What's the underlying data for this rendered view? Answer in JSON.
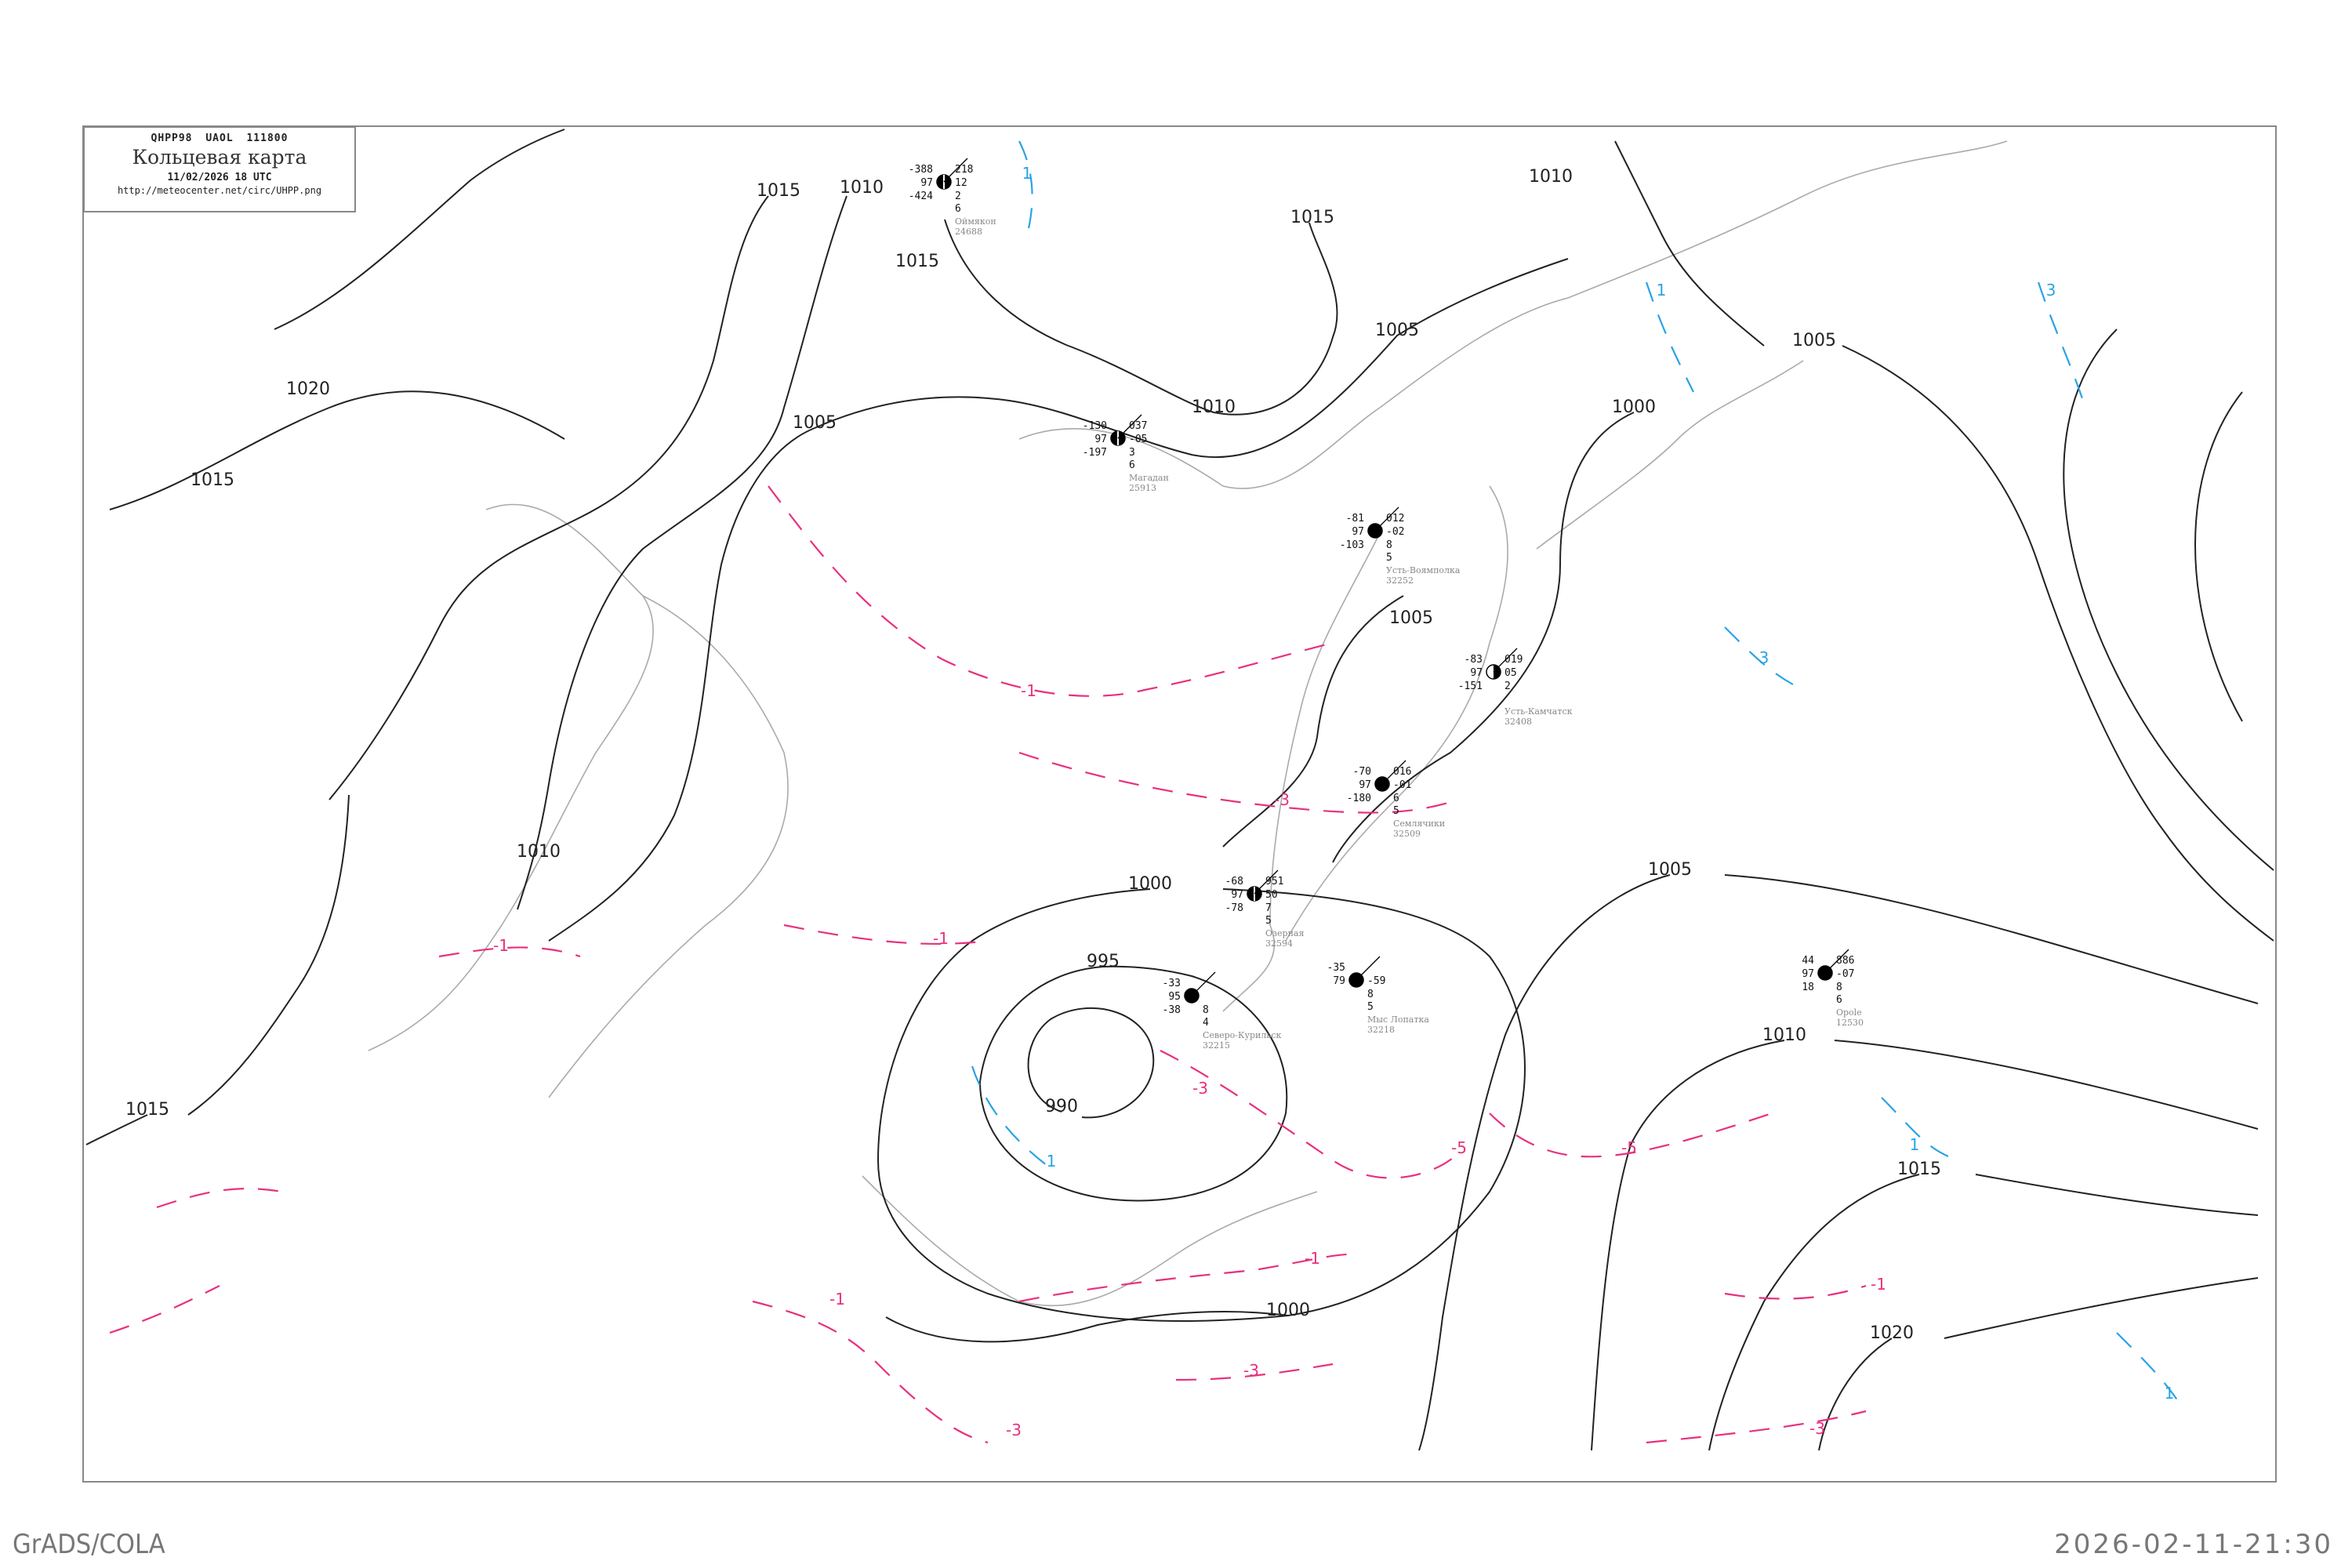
{
  "header": {
    "code_line": "QHPP98  UAOL  111800",
    "title": "Кольцевая карта",
    "datetime": "11/02/2026 18 UTC",
    "url": "http://meteocenter.net/circ/UHPP.png"
  },
  "footer": {
    "left": "GrADS/COLA",
    "right": "2026-02-11-21:30"
  },
  "colors": {
    "isobar": "#222222",
    "negative_isotherm": "#e8307f",
    "positive_isotherm": "#29a3e6",
    "coastline": "#aaaaaa",
    "frame": "#888888",
    "snow_marker": "#3a8ee6"
  },
  "isobar_labels": [
    "1015",
    "1010",
    "1015",
    "1015",
    "1010",
    "1005",
    "1005",
    "1010",
    "1005",
    "1000",
    "1020",
    "1015",
    "1005",
    "1010",
    "1000",
    "995",
    "990",
    "1005",
    "1010",
    "1015",
    "1020",
    "1000",
    "1015"
  ],
  "isotherm_labels": [
    {
      "text": "-1",
      "sign": "neg"
    },
    {
      "text": "-3",
      "sign": "neg"
    },
    {
      "text": "-1",
      "sign": "neg"
    },
    {
      "text": "-1",
      "sign": "neg"
    },
    {
      "text": "-3",
      "sign": "neg"
    },
    {
      "text": "-5",
      "sign": "neg"
    },
    {
      "text": "-5",
      "sign": "neg"
    },
    {
      "text": "-1",
      "sign": "neg"
    },
    {
      "text": "-1",
      "sign": "neg"
    },
    {
      "text": "-3",
      "sign": "neg"
    },
    {
      "text": "-3",
      "sign": "neg"
    },
    {
      "text": "-1",
      "sign": "neg"
    },
    {
      "text": "-3",
      "sign": "neg"
    },
    {
      "text": "1",
      "sign": "pos"
    },
    {
      "text": "1",
      "sign": "pos"
    },
    {
      "text": "3",
      "sign": "pos"
    },
    {
      "text": "1",
      "sign": "pos"
    },
    {
      "text": "1",
      "sign": "pos"
    },
    {
      "text": "3",
      "sign": "pos"
    },
    {
      "text": "1",
      "sign": "pos"
    }
  ],
  "stations": [
    {
      "name": "Оймякон",
      "index": "24688",
      "temp": "-388",
      "vis": "97",
      "dew": "-424",
      "pressure": "218",
      "tendency": "12",
      "cloud_low": "2",
      "cloud_high": "6",
      "cover": "full-split"
    },
    {
      "name": "Магадан",
      "index": "25913",
      "temp": "-130",
      "vis": "97",
      "dew": "-197",
      "pressure": "037",
      "tendency": "-05",
      "cloud_low": "3",
      "cloud_high": "6",
      "cover": "full-split"
    },
    {
      "name": "Усть-Воямполка",
      "index": "32252",
      "temp": "-81",
      "vis": "97",
      "dew": "-103",
      "pressure": "012",
      "tendency": "-02",
      "cloud_low": "8",
      "cloud_high": "5",
      "cover": "full"
    },
    {
      "name": "Семлячики",
      "index": "32509",
      "temp": "-70",
      "vis": "97",
      "dew": "-180",
      "pressure": "016",
      "tendency": "-01",
      "cloud_low": "6",
      "cloud_high": "5",
      "cover": "three-quarter"
    },
    {
      "name": "Усть-Камчатск",
      "index": "32408",
      "temp": "-83",
      "vis": "97",
      "dew": "-151",
      "pressure": "019",
      "tendency": "05",
      "cloud_low": "2",
      "cloud_high": "",
      "cover": "half"
    },
    {
      "name": "Озерная",
      "index": "32594",
      "temp": "-68",
      "vis": "97",
      "dew": "-78",
      "pressure": "951",
      "tendency": "50",
      "cloud_low": "7",
      "cloud_high": "5",
      "cover": "full-split"
    },
    {
      "name": "Мыс Лопатка",
      "index": "32218",
      "temp": "-35",
      "vis": "79",
      "dew": "",
      "pressure": "",
      "tendency": "-59",
      "cloud_low": "8",
      "cloud_high": "5",
      "cover": "full"
    },
    {
      "name": "Северо-Курильск",
      "index": "32215",
      "temp": "-33",
      "vis": "95",
      "dew": "-38",
      "pressure": "",
      "tendency": "",
      "cloud_low": "8",
      "cloud_high": "4",
      "cover": "full"
    },
    {
      "name": "Opole",
      "index": "12530",
      "temp": "44",
      "vis": "97",
      "dew": "18",
      "pressure": "886",
      "tendency": "-07",
      "cloud_low": "8",
      "cloud_high": "6",
      "cover": "full"
    }
  ]
}
